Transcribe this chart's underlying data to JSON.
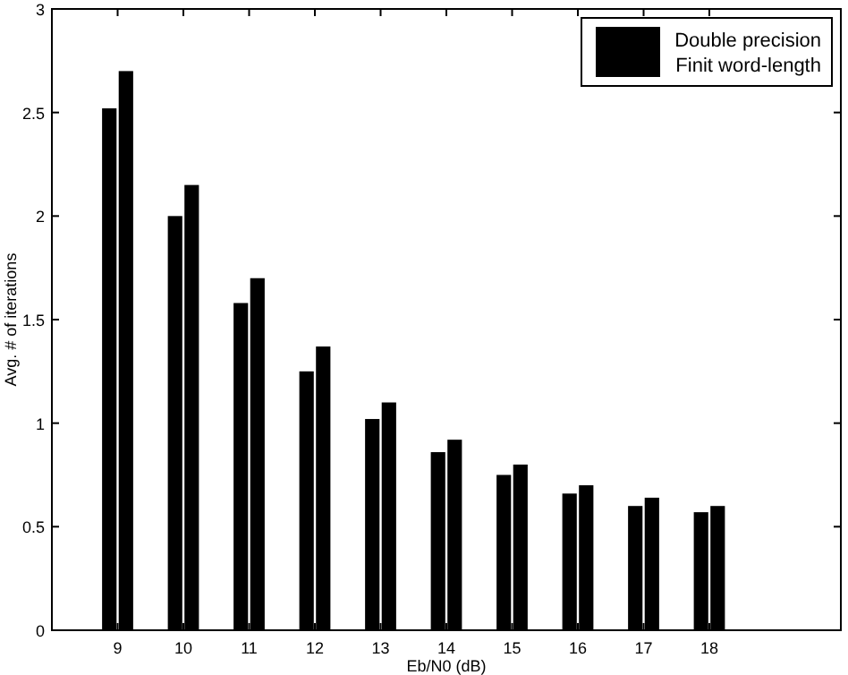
{
  "chart_data": {
    "type": "bar",
    "xlabel": "Eb/N0 (dB)",
    "ylabel": "Avg. # of iterations",
    "x": [
      9,
      10,
      11,
      12,
      13,
      14,
      15,
      16,
      17,
      18
    ],
    "xlim": [
      8,
      20
    ],
    "xticks": [
      9,
      10,
      11,
      12,
      13,
      14,
      15,
      16,
      17,
      18
    ],
    "ylim": [
      0,
      3
    ],
    "yticks": [
      0,
      {
        "value": 0.5,
        "label": "0.5"
      },
      1,
      {
        "value": 1.5,
        "label": "1.5"
      },
      2,
      {
        "value": 2.5,
        "label": "2.5"
      },
      3
    ],
    "series": [
      {
        "name": "Double precision",
        "color": "#000000",
        "values": [
          2.52,
          2.0,
          1.58,
          1.25,
          1.02,
          0.86,
          0.75,
          0.66,
          0.6,
          0.57
        ]
      },
      {
        "name": "Finit word-length",
        "color": "#000000",
        "values": [
          2.7,
          2.15,
          1.7,
          1.37,
          1.1,
          0.92,
          0.8,
          0.7,
          0.64,
          0.6
        ]
      }
    ],
    "legend": "top right",
    "grid": false
  }
}
